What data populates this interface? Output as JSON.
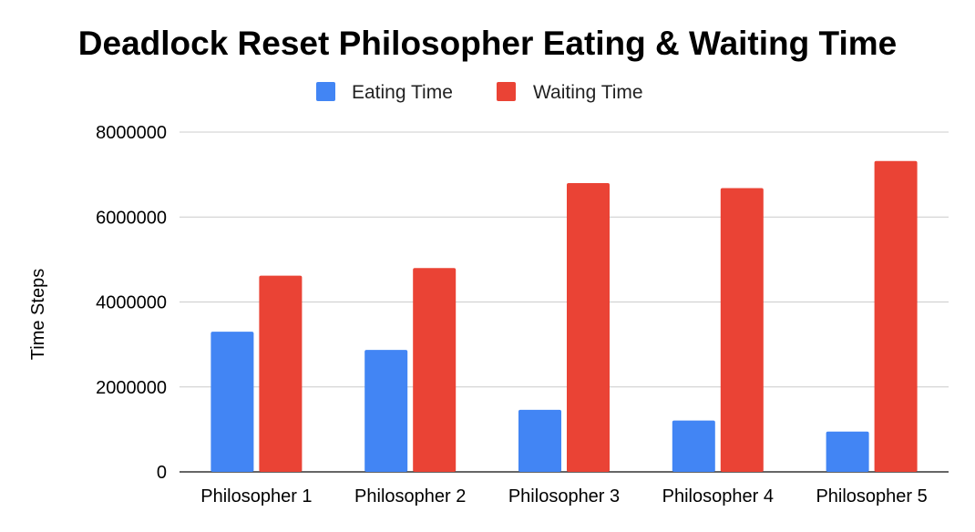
{
  "chart_data": {
    "type": "bar",
    "title": "Deadlock Reset Philosopher Eating & Waiting Time",
    "xlabel": "",
    "ylabel": "Time Steps",
    "categories": [
      "Philosopher 1",
      "Philosopher 2",
      "Philosopher 3",
      "Philosopher 4",
      "Philosopher 5"
    ],
    "series": [
      {
        "name": "Eating Time",
        "color": "#4285f4",
        "values": [
          3300000,
          2870000,
          1460000,
          1210000,
          950000
        ]
      },
      {
        "name": "Waiting Time",
        "color": "#ea4335",
        "values": [
          4620000,
          4800000,
          6800000,
          6680000,
          7320000
        ]
      }
    ],
    "ylim": [
      0,
      8000000
    ],
    "yticks": [
      "0",
      "2000000",
      "4000000",
      "6000000",
      "8000000"
    ],
    "ytick_values": [
      0,
      2000000,
      4000000,
      6000000,
      8000000
    ],
    "grid": true,
    "legend_position": "top"
  }
}
